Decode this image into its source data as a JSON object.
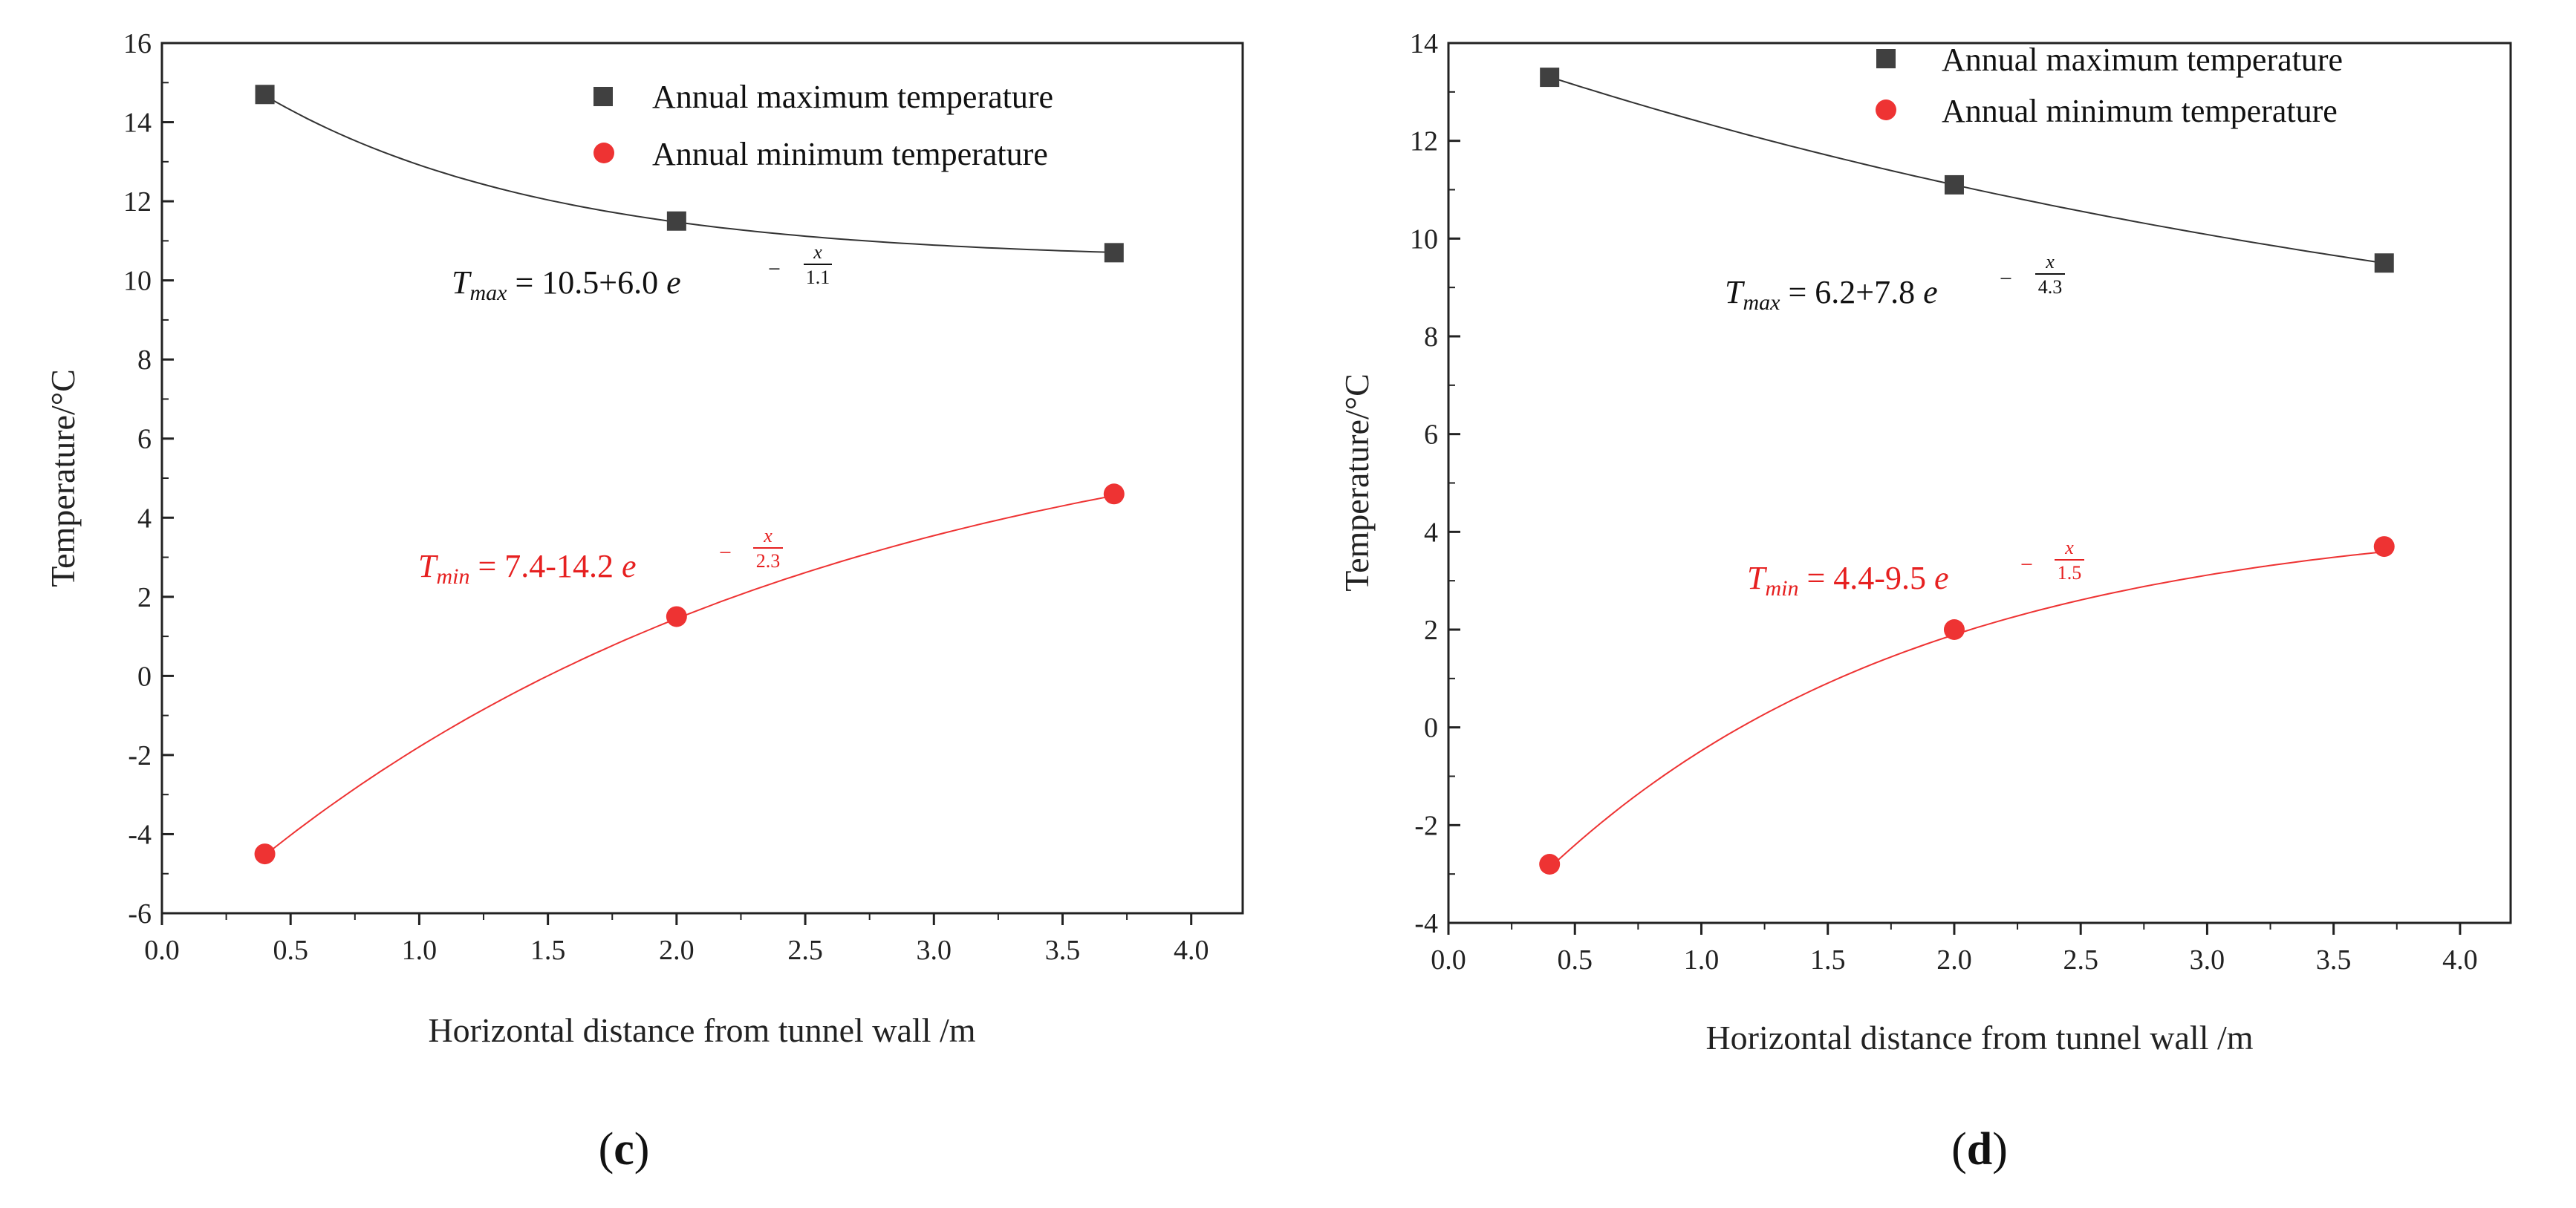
{
  "colors": {
    "max_series": "#404040",
    "min_series": "#ee3333",
    "axis": "#222222"
  },
  "chart_data": [
    {
      "type": "scatter",
      "panel_label": "c",
      "xlabel": "Horizontal distance from tunnel wall /m",
      "ylabel": "Temperature/°C",
      "xlim": [
        0.0,
        4.2
      ],
      "ylim": [
        -6,
        16
      ],
      "x_ticks": [
        "0.0",
        "0.5",
        "1.0",
        "1.5",
        "2.0",
        "2.5",
        "3.0",
        "3.5",
        "4.0"
      ],
      "y_ticks": [
        "-6",
        "-4",
        "-2",
        "0",
        "2",
        "4",
        "6",
        "8",
        "10",
        "12",
        "14",
        "16"
      ],
      "legend": [
        "Annual maximum temperature",
        "Annual minimum temperature"
      ],
      "series": [
        {
          "name": "Annual maximum temperature",
          "x": [
            0.4,
            2.0,
            3.7
          ],
          "y": [
            14.7,
            11.5,
            10.7
          ],
          "fit": {
            "a": 10.5,
            "b": 6.0,
            "c": 1.1
          },
          "equation": {
            "symbol": "T",
            "sub": "max",
            "text": " = 10.5+6.0 ",
            "exp_num": "x",
            "exp_den": "1.1"
          }
        },
        {
          "name": "Annual minimum temperature",
          "x": [
            0.4,
            2.0,
            3.7
          ],
          "y": [
            -4.5,
            1.5,
            4.6
          ],
          "fit": {
            "a": 7.4,
            "b": -14.2,
            "c": 2.3
          },
          "equation": {
            "symbol": "T",
            "sub": "min",
            "text": " = 7.4-14.2 ",
            "exp_num": "x",
            "exp_den": "2.3"
          }
        }
      ]
    },
    {
      "type": "scatter",
      "panel_label": "d",
      "xlabel": "Horizontal distance from tunnel wall /m",
      "ylabel": "Temperature/°C",
      "xlim": [
        0.0,
        4.2
      ],
      "ylim": [
        -4,
        14
      ],
      "x_ticks": [
        "0.0",
        "0.5",
        "1.0",
        "1.5",
        "2.0",
        "2.5",
        "3.0",
        "3.5",
        "4.0"
      ],
      "y_ticks": [
        "-4",
        "-2",
        "0",
        "2",
        "4",
        "6",
        "8",
        "10",
        "12",
        "14"
      ],
      "legend": [
        "Annual maximum temperature",
        "Annual minimum temperature"
      ],
      "series": [
        {
          "name": "Annual maximum temperature",
          "x": [
            0.4,
            2.0,
            3.7
          ],
          "y": [
            13.3,
            11.1,
            9.5
          ],
          "fit": {
            "a": 6.2,
            "b": 7.8,
            "c": 4.3
          },
          "equation": {
            "symbol": "T",
            "sub": "max",
            "text": " = 6.2+7.8 ",
            "exp_num": "x",
            "exp_den": "4.3"
          }
        },
        {
          "name": "Annual minimum temperature",
          "x": [
            0.4,
            2.0,
            3.7
          ],
          "y": [
            -2.8,
            2.0,
            3.7
          ],
          "fit": {
            "a": 4.4,
            "b": -9.5,
            "c": 1.5
          },
          "equation": {
            "symbol": "T",
            "sub": "min",
            "text": " = 4.4-9.5 ",
            "exp_num": "x",
            "exp_den": "1.5"
          }
        }
      ]
    }
  ]
}
